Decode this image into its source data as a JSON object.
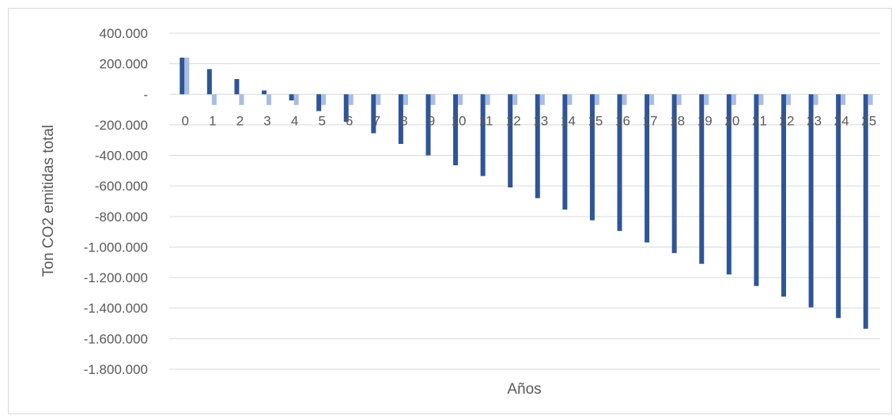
{
  "chart_data": {
    "type": "bar",
    "title": "",
    "xlabel": "Años",
    "ylabel": "Ton CO2 emitidas total",
    "ylim": [
      -1800000,
      400000
    ],
    "y_ticks": [
      400000,
      200000,
      0,
      -200000,
      -400000,
      -600000,
      -800000,
      -1000000,
      -1200000,
      -1400000,
      -1600000,
      -1800000
    ],
    "y_tick_labels": [
      "400.000",
      "200.000",
      "-",
      "-200.000",
      "-400.000",
      "-600.000",
      "-800.000",
      "-1.000.000",
      "-1.200.000",
      "-1.400.000",
      "-1.600.000",
      "-1.800.000"
    ],
    "categories": [
      "0",
      "1",
      "2",
      "3",
      "4",
      "5",
      "6",
      "7",
      "8",
      "9",
      "10",
      "11",
      "12",
      "13",
      "14",
      "15",
      "16",
      "17",
      "18",
      "19",
      "20",
      "21",
      "22",
      "23",
      "24",
      "25"
    ],
    "grid": true,
    "legend": "none",
    "colors": {
      "series1": "#2f5597",
      "series2": "#a9bce3",
      "grid": "#d9d9d9",
      "text": "#595959"
    },
    "series": [
      {
        "values": [
          240000,
          165000,
          100000,
          25000,
          -40000,
          -110000,
          -180000,
          -255000,
          -325000,
          -400000,
          -465000,
          -535000,
          -610000,
          -680000,
          -755000,
          -825000,
          -895000,
          -970000,
          -1040000,
          -1110000,
          -1180000,
          -1255000,
          -1325000,
          -1395000,
          -1465000,
          -1535000
        ]
      },
      {
        "values": [
          240000,
          -70000,
          -70000,
          -70000,
          -70000,
          -70000,
          -70000,
          -70000,
          -70000,
          -70000,
          -70000,
          -70000,
          -70000,
          -70000,
          -70000,
          -70000,
          -70000,
          -70000,
          -70000,
          -70000,
          -70000,
          -70000,
          -70000,
          -70000,
          -70000,
          -70000
        ]
      }
    ]
  }
}
